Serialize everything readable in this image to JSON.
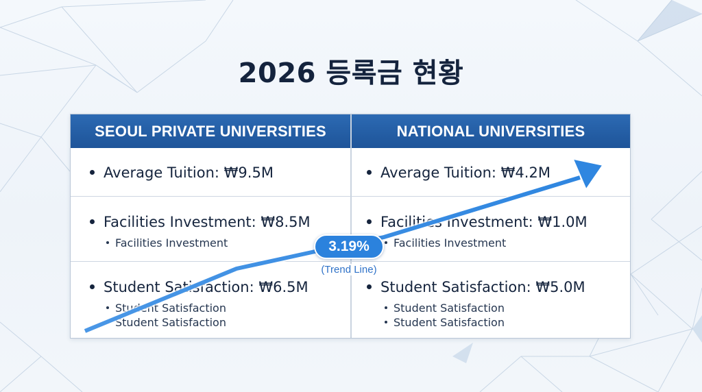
{
  "title": "2026 등록금 현황",
  "table": {
    "left": {
      "header": "SEOUL PRIVATE UNIVERSITIES",
      "rows": [
        {
          "main": "Average Tuition: ₩9.5M",
          "subs": []
        },
        {
          "main": "Facilities Investment: ₩8.5M",
          "subs": [
            "Facilities Investment"
          ]
        },
        {
          "main": "Student Satisfaction: ₩6.5M",
          "subs": [
            "Student Satisfaction",
            "Student Satisfaction"
          ]
        }
      ]
    },
    "right": {
      "header": "NATIONAL UNIVERSITIES",
      "rows": [
        {
          "main": "Average Tuition: ₩4.2M",
          "subs": []
        },
        {
          "main": "Facilities Investment: ₩1.0M",
          "subs": [
            "Facilities Investment"
          ]
        },
        {
          "main": "Student Satisfaction: ₩5.0M",
          "subs": [
            "Student Satisfaction",
            "Student Satisfaction"
          ]
        }
      ]
    }
  },
  "trend": {
    "value": "3.19%",
    "label": "(Trend Line)"
  },
  "colors": {
    "header_blue": "#2361a9",
    "trend_blue": "#3a8fe6",
    "title_text": "#14233d"
  }
}
